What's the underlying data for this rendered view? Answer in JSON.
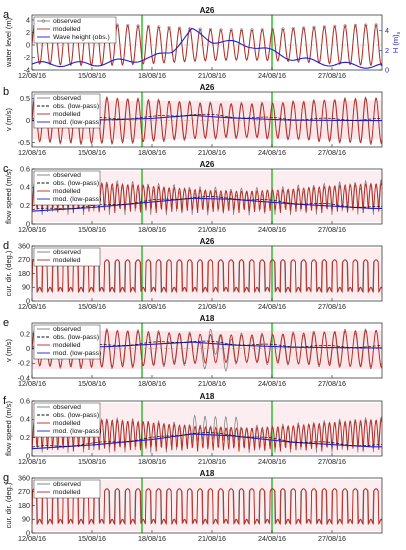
{
  "figure": {
    "xticks": [
      "12/08/16",
      "15/08/16",
      "18/08/16",
      "21/08/16",
      "24/08/16",
      "27/08/16"
    ],
    "colors": {
      "observed": "#7a7a7a",
      "modelled": "#c0281e",
      "lowpass": "#1f1fd6",
      "wave": "#1f1fd6",
      "band": "#f3b8c4",
      "marker": "#22bb22"
    }
  },
  "chart_data": [
    {
      "letter": "a",
      "title": "A26",
      "type": "line",
      "ylabel": "water level (m)",
      "yticks": [
        "-4",
        "-2",
        "0",
        "2",
        "4"
      ],
      "ylim": [
        -4,
        4.8
      ],
      "y2label": "H (m)",
      "y2sub": "s",
      "y2ticks": [
        "0",
        "2",
        "4"
      ],
      "legend": [
        "observed",
        "modelled",
        "Wave height (obs.)"
      ],
      "series": [
        {
          "name": "observed",
          "x_range": [
            "12/08/16",
            "29/08/16"
          ],
          "pattern": "semidiurnal tide",
          "amplitude_m": 3.0
        },
        {
          "name": "modelled",
          "x_range": [
            "12/08/16",
            "29/08/16"
          ],
          "pattern": "semidiurnal tide",
          "amplitude_m": 3.0
        },
        {
          "name": "Wave height (obs.)",
          "x": [
            "12/08/16",
            "15/08/16",
            "18/08/16",
            "19/08/16",
            "20/08/16",
            "21/08/16",
            "23/08/16",
            "25/08/16",
            "27/08/16",
            "29/08/16"
          ],
          "values": [
            0.6,
            0.6,
            1.2,
            2.0,
            4.0,
            3.0,
            2.5,
            1.2,
            0.6,
            0.4
          ]
        }
      ]
    },
    {
      "letter": "b",
      "title": "A26",
      "type": "line",
      "ylabel": "v (m/s)",
      "yticks": [
        "-0.5",
        "0",
        "0.5"
      ],
      "ylim": [
        -0.6,
        0.65
      ],
      "legend": [
        "observed",
        "obs. (low-pass)",
        "modelled",
        "mod. (low-pass)"
      ],
      "series": [
        {
          "name": "modelled",
          "pattern": "tidal oscillation",
          "amplitude": 0.45
        },
        {
          "name": "mod. (low-pass)",
          "x": [
            "12/08/16",
            "16/08/16",
            "18/08/16",
            "20/08/16",
            "22/08/16",
            "25/08/16",
            "29/08/16"
          ],
          "values": [
            0.0,
            0.02,
            0.05,
            0.12,
            0.06,
            0.01,
            0.0
          ]
        }
      ]
    },
    {
      "letter": "c",
      "title": "A26",
      "type": "line",
      "ylabel": "flow speed (m/s)",
      "yticks": [
        "0",
        "0.2",
        "0.4",
        "0.6"
      ],
      "ylim": [
        0,
        0.6
      ],
      "legend": [
        "observed",
        "obs. (low-pass)",
        "modelled",
        "mod. (low-pass)"
      ],
      "series": [
        {
          "name": "modelled",
          "pattern": "tidal speed",
          "peak": 0.45
        },
        {
          "name": "mod. (low-pass)",
          "x": [
            "12/08/16",
            "15/08/16",
            "18/08/16",
            "20/08/16",
            "22/08/16",
            "25/08/16",
            "29/08/16"
          ],
          "values": [
            0.14,
            0.18,
            0.24,
            0.28,
            0.27,
            0.22,
            0.17
          ]
        }
      ]
    },
    {
      "letter": "d",
      "title": "A26",
      "type": "line",
      "ylabel": "cur. dir. (deg.)",
      "yticks": [
        "0",
        "90",
        "180",
        "270",
        "360"
      ],
      "ylim": [
        0,
        360
      ],
      "legend": [
        "observed",
        "modelled"
      ],
      "series": [
        {
          "name": "modelled",
          "pattern": "flood/ebb direction switch",
          "values_range": [
            60,
            280
          ]
        }
      ]
    },
    {
      "letter": "e",
      "title": "A18",
      "type": "line",
      "ylabel": "v (m/s)",
      "yticks": [
        "-0.4",
        "-0.2",
        "0",
        "0.2"
      ],
      "ylim": [
        -0.4,
        0.35
      ],
      "legend": [
        "observed",
        "obs. (low-pass)",
        "modelled",
        "mod. (low-pass)"
      ],
      "series": [
        {
          "name": "modelled",
          "pattern": "tidal oscillation",
          "amplitude": 0.22
        },
        {
          "name": "mod. (low-pass)",
          "x": [
            "12/08/16",
            "16/08/16",
            "18/08/16",
            "20/08/16",
            "22/08/16",
            "25/08/16",
            "29/08/16"
          ],
          "values": [
            0.0,
            0.03,
            0.06,
            0.09,
            0.05,
            0.02,
            0.01
          ]
        }
      ]
    },
    {
      "letter": "f",
      "title": "A18",
      "type": "line",
      "ylabel": "flow speed (m/s)",
      "yticks": [
        "0",
        "0.2",
        "0.4",
        "0.6"
      ],
      "ylim": [
        0,
        0.6
      ],
      "legend": [
        "observed",
        "obs. (low-pass)",
        "modelled",
        "mod. (low-pass)"
      ],
      "series": [
        {
          "name": "modelled",
          "pattern": "tidal speed",
          "peak": 0.4
        },
        {
          "name": "mod. (low-pass)",
          "x": [
            "12/08/16",
            "15/08/16",
            "18/08/16",
            "20/08/16",
            "22/08/16",
            "25/08/16",
            "29/08/16"
          ],
          "values": [
            0.08,
            0.12,
            0.18,
            0.24,
            0.22,
            0.15,
            0.1
          ]
        }
      ]
    },
    {
      "letter": "g",
      "title": "A18",
      "type": "line",
      "ylabel": "cur. dir. (deg.)",
      "yticks": [
        "0",
        "90",
        "180",
        "270",
        "360"
      ],
      "ylim": [
        0,
        360
      ],
      "legend": [
        "observed",
        "modelled"
      ],
      "series": [
        {
          "name": "modelled",
          "pattern": "flood/ebb direction switch",
          "values_range": [
            50,
            300
          ]
        }
      ]
    }
  ]
}
